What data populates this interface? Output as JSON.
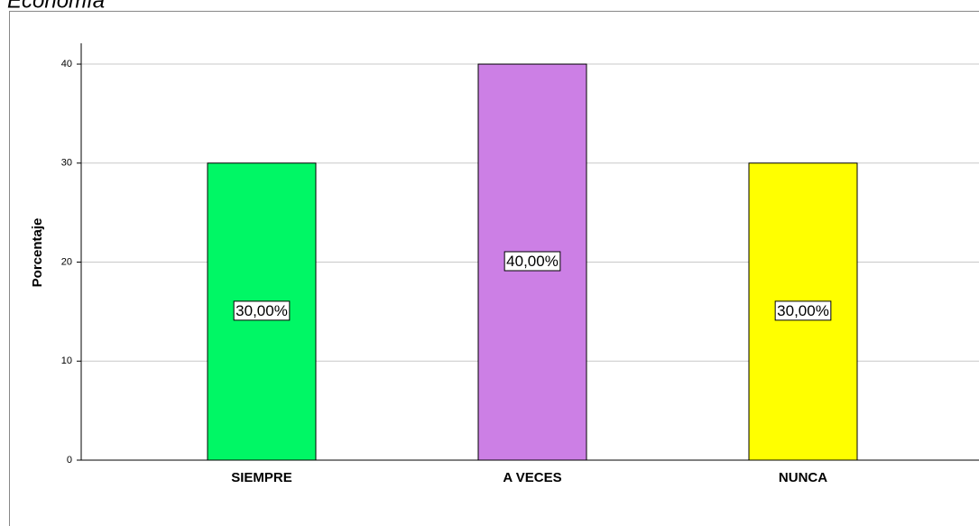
{
  "chart_data": {
    "type": "bar",
    "title": "Economía",
    "y_label": "Porcentaje",
    "categories": [
      "SIEMPRE",
      "A VECES",
      "NUNCA"
    ],
    "values": [
      30,
      40,
      30
    ],
    "value_labels": [
      "30,00%",
      "40,00%",
      "30,00%"
    ],
    "colors": [
      "#00f765",
      "#cc7fe5",
      "#ffff00"
    ],
    "ylim": [
      0,
      42.1
    ],
    "yticks": [
      0,
      10,
      20,
      30,
      40
    ],
    "grid": true
  }
}
